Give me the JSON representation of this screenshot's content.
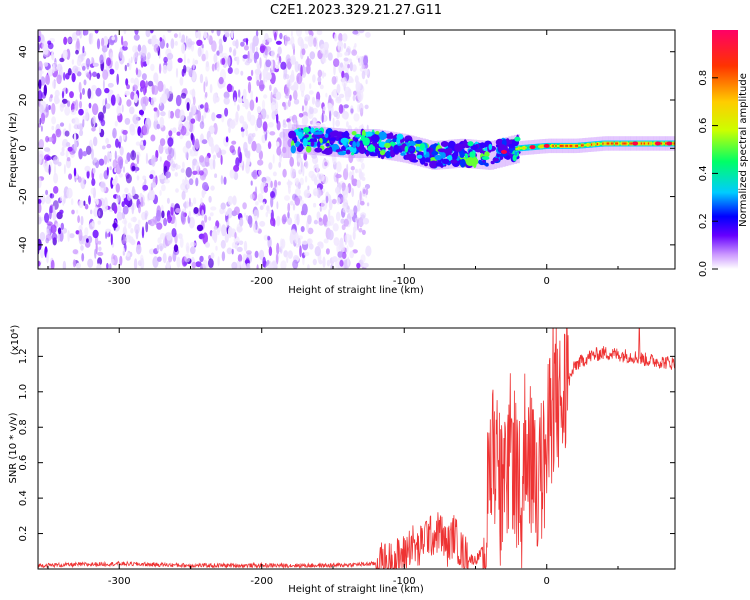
{
  "title": "C2E1.2023.329.21.27.G11",
  "chart_data": [
    {
      "type": "heatmap",
      "xlabel": "Height of straight line (km)",
      "ylabel": "Frequency (Hz)",
      "xlim": [
        -357,
        90
      ],
      "ylim": [
        -50,
        49
      ],
      "x_ticks": [
        -300,
        -200,
        -100,
        0
      ],
      "y_ticks": [
        -40,
        -20,
        0,
        20,
        40
      ],
      "x_tick_labels": [
        "-300",
        "-200",
        "-100",
        "0"
      ],
      "y_tick_labels": [
        "-40",
        "-20",
        "0",
        "20",
        "40"
      ],
      "colorbar": {
        "label": "Normalized spectral amplitude",
        "range": [
          0,
          1
        ],
        "ticks": [
          0.0,
          0.2,
          0.4,
          0.6,
          0.8
        ],
        "tick_labels": [
          "0.0",
          "0.2",
          "0.4",
          "0.6",
          "0.8"
        ],
        "colors": [
          "#ffffff",
          "#cc99ff",
          "#6600ff",
          "#0000ff",
          "#00ccff",
          "#00ff66",
          "#ccff00",
          "#ffcc00",
          "#ff3300",
          "#ff0066"
        ]
      },
      "track": [
        {
          "x": -180,
          "y": 4
        },
        {
          "x": -160,
          "y": 3
        },
        {
          "x": -140,
          "y": 2
        },
        {
          "x": -120,
          "y": 2
        },
        {
          "x": -100,
          "y": 0
        },
        {
          "x": -80,
          "y": -3
        },
        {
          "x": -60,
          "y": -2
        },
        {
          "x": -40,
          "y": -3
        },
        {
          "x": -20,
          "y": 0
        },
        {
          "x": 0,
          "y": 1
        },
        {
          "x": 20,
          "y": 1
        },
        {
          "x": 40,
          "y": 2
        },
        {
          "x": 60,
          "y": 2
        },
        {
          "x": 90,
          "y": 2
        }
      ]
    },
    {
      "type": "line",
      "xlabel": "Height of straight line (km)",
      "ylabel": "SNR (10 * v/v)",
      "y_multiplier": "(x10⁴)",
      "xlim": [
        -357,
        90
      ],
      "ylim": [
        0,
        1.36
      ],
      "x_ticks": [
        -300,
        -200,
        -100,
        0
      ],
      "y_ticks": [
        0.2,
        0.4,
        0.6,
        0.8,
        1.0,
        1.2
      ],
      "x_tick_labels": [
        "-300",
        "-200",
        "-100",
        "0"
      ],
      "y_tick_labels": [
        "0.2",
        "0.4",
        "0.6",
        "0.8",
        "1.0",
        "1.2"
      ],
      "color": "#ee3333",
      "series": [
        {
          "x": [
            -357,
            -300,
            -250,
            -200,
            -150,
            -120,
            -110,
            -100,
            -95,
            -90,
            -85,
            -80,
            -75,
            -70,
            -65,
            -60,
            -55,
            -50,
            -45,
            -42,
            -38,
            -35,
            -32,
            -30,
            -25,
            -20,
            -18,
            -15,
            -10,
            -5,
            0,
            5,
            10,
            15,
            20,
            30,
            40,
            50,
            60,
            70,
            80,
            90
          ],
          "y": [
            0.02,
            0.03,
            0.02,
            0.02,
            0.02,
            0.03,
            0.04,
            0.08,
            0.15,
            0.1,
            0.2,
            0.18,
            0.22,
            0.12,
            0.2,
            0.1,
            0.06,
            0.05,
            0.1,
            0.3,
            0.8,
            0.6,
            0.4,
            0.35,
            0.7,
            0.5,
            0.25,
            0.8,
            0.55,
            0.5,
            0.65,
            1.0,
            0.9,
            1.05,
            1.15,
            1.2,
            1.22,
            1.21,
            1.2,
            1.18,
            1.17,
            1.16
          ]
        }
      ]
    }
  ]
}
